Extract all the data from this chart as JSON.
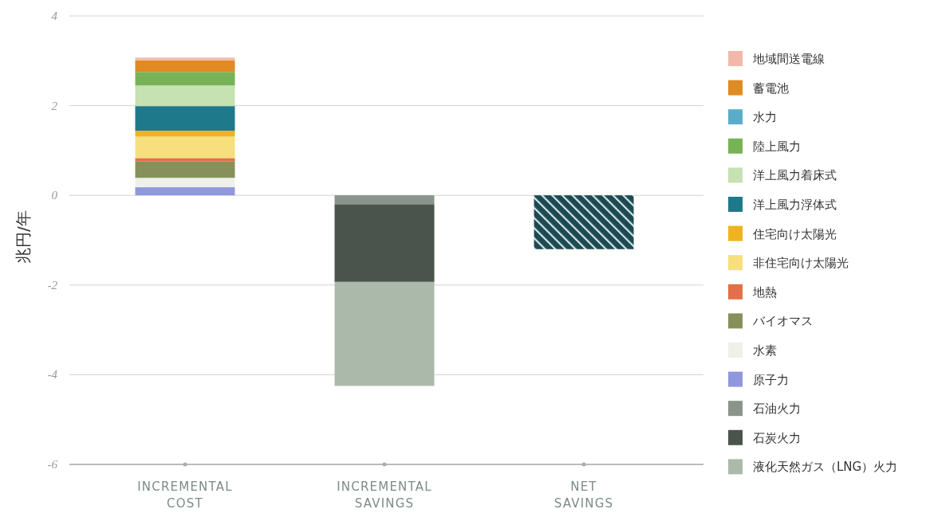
{
  "chart_data": {
    "type": "bar",
    "stacked": true,
    "ylabel": "兆円/年",
    "categories": [
      "INCREMENTAL COST",
      "INCREMENTAL SAVINGS",
      "NET SAVINGS"
    ],
    "ylim": [
      -6,
      4
    ],
    "yticks": [
      -6,
      -4,
      -2,
      0,
      2,
      4
    ],
    "grid": "y",
    "legend": "right",
    "series": [
      {
        "name": "原子力",
        "color": "#8f97dd",
        "values": [
          0.18,
          null,
          null
        ]
      },
      {
        "name": "水素",
        "color": "#eef1e9",
        "values": [
          0.21,
          null,
          null
        ]
      },
      {
        "name": "バイオマス",
        "color": "#87905a",
        "values": [
          0.37,
          null,
          null
        ]
      },
      {
        "name": "地熱",
        "color": "#e46f48",
        "values": [
          0.07,
          null,
          null
        ]
      },
      {
        "name": "非住宅向け太陽光",
        "color": "#f6df7c",
        "values": [
          0.48,
          null,
          null
        ]
      },
      {
        "name": "住宅向け太陽光",
        "color": "#efb41c",
        "values": [
          0.13,
          null,
          null
        ]
      },
      {
        "name": "洋上風力浮体式",
        "color": "#1e7a8b",
        "values": [
          0.55,
          null,
          null
        ]
      },
      {
        "name": "洋上風力着床式",
        "color": "#c6e1b2",
        "values": [
          0.46,
          null,
          null
        ]
      },
      {
        "name": "陸上風力",
        "color": "#78b257",
        "values": [
          0.3,
          null,
          null
        ]
      },
      {
        "name": "水力",
        "color": "#5aaccb",
        "values": [
          0,
          null,
          null
        ]
      },
      {
        "name": "蓄電池",
        "color": "#df8a22",
        "values": [
          0.26,
          null,
          null
        ]
      },
      {
        "name": "地域間送電線",
        "color": "#f2b9aa",
        "values": [
          0.06,
          null,
          null
        ]
      },
      {
        "name": "石油火力",
        "color": "#8a948b",
        "values": [
          null,
          -0.2,
          null
        ]
      },
      {
        "name": "石炭火力",
        "color": "#4b534d",
        "values": [
          null,
          -1.73,
          null
        ]
      },
      {
        "name": "液化天然ガス（LNG）火力",
        "color": "#abb9ab",
        "values": [
          null,
          -2.32,
          null
        ]
      },
      {
        "color": "#1d4a52",
        "values": [
          null,
          null,
          -1.2
        ]
      }
    ]
  }
}
